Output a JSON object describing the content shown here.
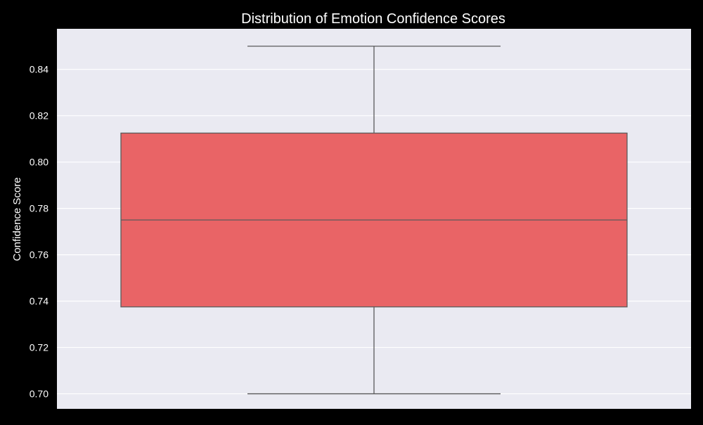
{
  "chart_data": {
    "type": "box",
    "title": "Distribution of Emotion Confidence Scores",
    "xlabel": "",
    "ylabel": "Confidence Score",
    "ylim": [
      0.6935,
      0.8575
    ],
    "yticks": [
      0.7,
      0.72,
      0.74,
      0.76,
      0.78,
      0.8,
      0.82,
      0.84
    ],
    "ytick_labels": [
      "0.70",
      "0.72",
      "0.74",
      "0.76",
      "0.78",
      "0.80",
      "0.82",
      "0.84"
    ],
    "grid": true,
    "series": [
      {
        "whisker_low": 0.7,
        "q1": 0.7375,
        "median": 0.775,
        "q3": 0.8125,
        "whisker_high": 0.85
      }
    ],
    "colors": {
      "background": "#000000",
      "plot_area": "#eaeaf2",
      "grid": "#ffffff",
      "box_fill": "#e96466",
      "box_edge": "#5a5a5a",
      "text": "#ffffff"
    }
  }
}
